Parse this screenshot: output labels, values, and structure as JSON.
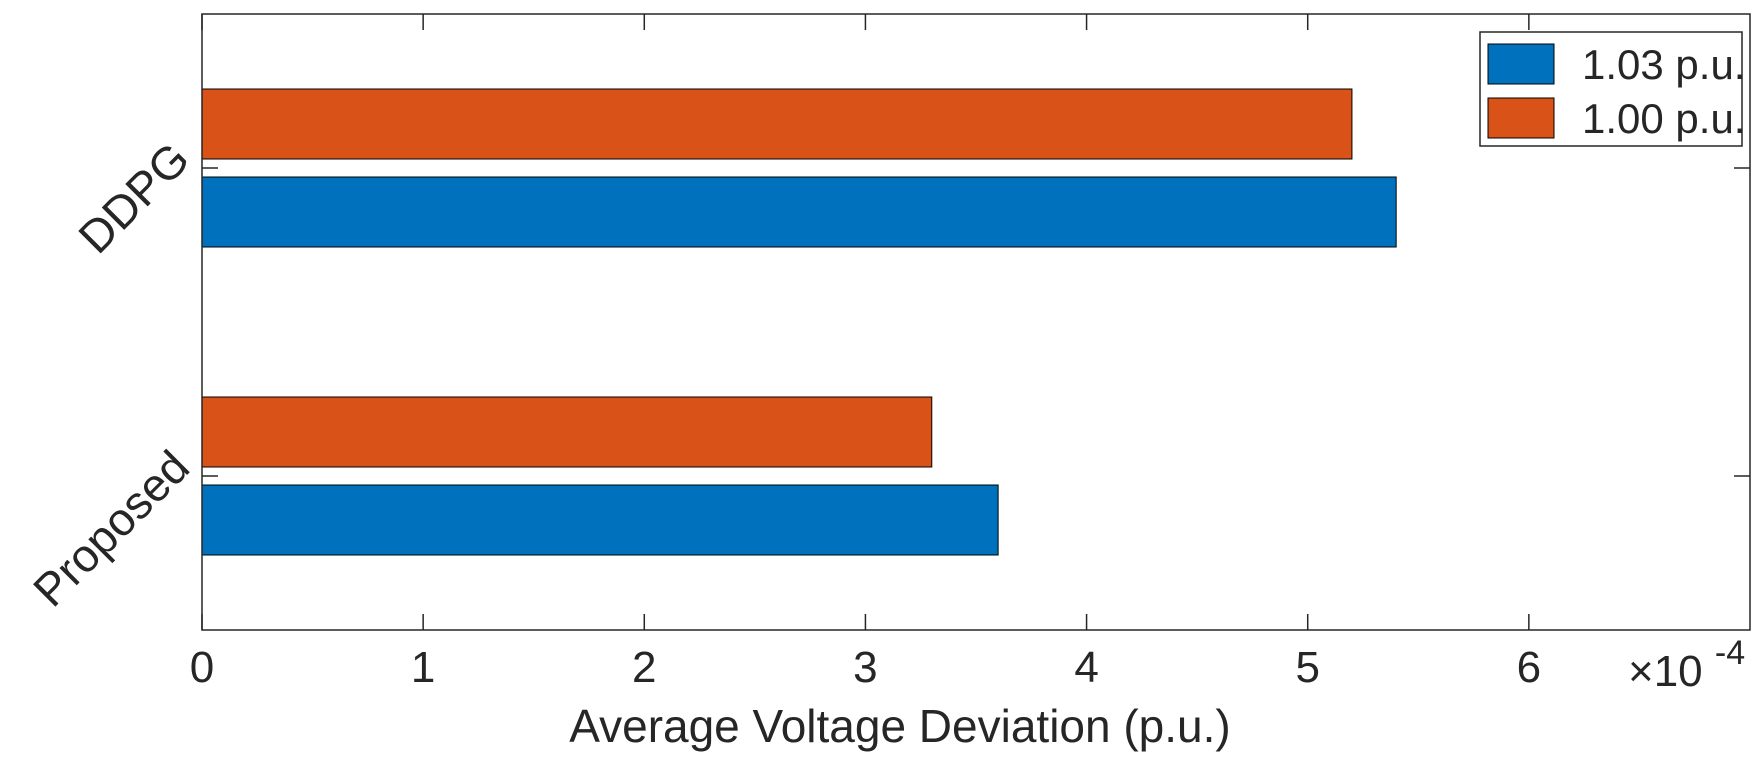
{
  "chart_data": {
    "type": "bar",
    "orientation": "horizontal",
    "title": "",
    "xlabel": "Average Voltage Deviation (p.u.)",
    "ylabel": "",
    "x_multiplier": "×10",
    "x_exponent": "-4",
    "xlim": [
      0,
      7
    ],
    "xticks": [
      "0",
      "1",
      "2",
      "3",
      "4",
      "5",
      "6"
    ],
    "categories": [
      "DDPG",
      "Proposed"
    ],
    "series": [
      {
        "name": "1.03 p.u.",
        "color": "#0072BD",
        "values": [
          5.4,
          3.6
        ]
      },
      {
        "name": "1.00 p.u.",
        "color": "#D95319",
        "values": [
          5.2,
          3.3
        ]
      }
    ],
    "grid": false,
    "legend": "top-right"
  }
}
